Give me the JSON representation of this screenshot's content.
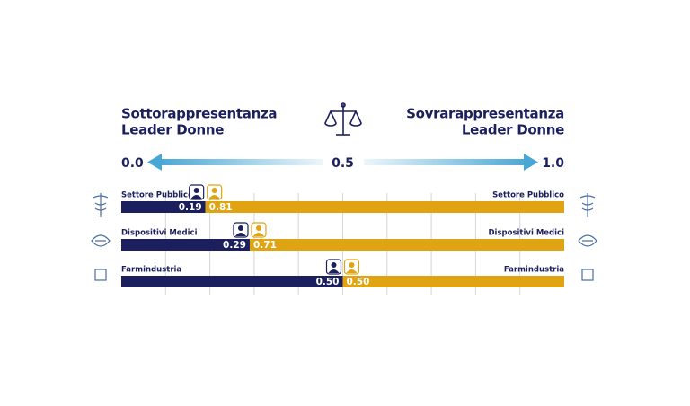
{
  "chart_data": {
    "type": "bar",
    "orientation": "horizontal",
    "stacked": true,
    "title_left": [
      "Sottorappresentanza",
      "Leader Donne"
    ],
    "title_right": [
      "Sovrarappresentanza",
      "Leader Donne"
    ],
    "categories": [
      "Settore Pubblico",
      "Dispositivi Medici",
      "Farmindustria"
    ],
    "series": [
      {
        "color": "#1b1f5e",
        "values": [
          0.19,
          0.29,
          0.5
        ],
        "value_labels": [
          "0.19",
          "0.29",
          "0.50"
        ]
      },
      {
        "color": "#e0a412",
        "values": [
          0.81,
          0.71,
          0.5
        ],
        "value_labels": [
          "0.81",
          "0.71",
          "0.50"
        ]
      }
    ],
    "xlim": [
      0,
      1
    ],
    "xticks": [
      {
        "value": 0,
        "label": "0.0"
      },
      0.5,
      {
        "value": 1,
        "label": "1.0"
      }
    ],
    "grid_ticks": [
      0.1,
      0.2,
      0.3,
      0.4,
      0.5,
      0.6,
      0.7,
      0.8,
      0.9
    ],
    "grid": true
  }
}
